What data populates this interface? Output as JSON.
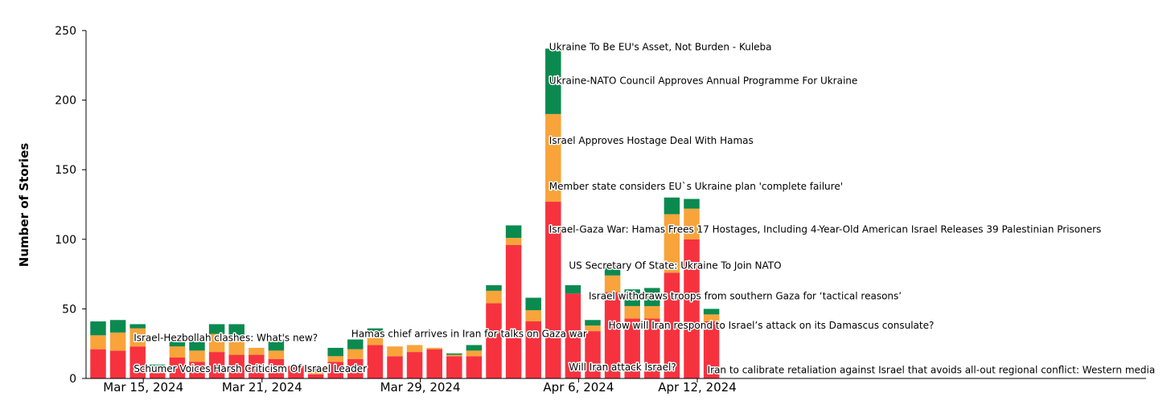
{
  "chart_data": {
    "type": "bar",
    "stacked": true,
    "title": "",
    "xlabel": "",
    "ylabel": "Number of Stories",
    "ylim": [
      0,
      250
    ],
    "yticks": [
      0,
      50,
      100,
      150,
      200,
      250
    ],
    "grid": false,
    "colors": {
      "red": "#f7323f",
      "orange": "#f8a43a",
      "green": "#0b8a50"
    },
    "xtick_labels": [
      {
        "index": 2,
        "label": "Mar 15, 2024"
      },
      {
        "index": 8,
        "label": "Mar 21, 2024"
      },
      {
        "index": 16,
        "label": "Mar 29, 2024"
      },
      {
        "index": 24,
        "label": "Apr 6, 2024"
      },
      {
        "index": 30,
        "label": "Apr 12, 2024"
      }
    ],
    "categories": [
      "Mar 13",
      "Mar 14",
      "Mar 15",
      "Mar 16",
      "Mar 17",
      "Mar 18",
      "Mar 19",
      "Mar 20",
      "Mar 21",
      "Mar 22",
      "Mar 23",
      "Mar 24",
      "Mar 25",
      "Mar 26",
      "Mar 27",
      "Mar 28",
      "Mar 29",
      "Mar 30",
      "Mar 31",
      "Apr 1",
      "Apr 2",
      "Apr 3",
      "Apr 4",
      "Apr 5",
      "Apr 6",
      "Apr 7",
      "Apr 8",
      "Apr 9",
      "Apr 10",
      "Apr 11",
      "Apr 12",
      "Apr 13",
      "Apr 14"
    ],
    "series": [
      {
        "name": "red",
        "color": "#f7323f",
        "values": [
          21,
          20,
          23,
          4,
          15,
          12,
          19,
          17,
          17,
          14,
          9,
          3,
          12,
          14,
          24,
          16,
          19,
          21,
          16,
          16,
          54,
          96,
          41,
          127,
          61,
          34,
          62,
          43,
          43,
          76,
          100,
          41,
          0
        ]
      },
      {
        "name": "orange",
        "color": "#f8a43a",
        "values": [
          10,
          13,
          13,
          3,
          8,
          8,
          13,
          14,
          5,
          6,
          0,
          2,
          4,
          7,
          7,
          7,
          5,
          1,
          1,
          4,
          9,
          5,
          8,
          63,
          0,
          4,
          12,
          9,
          9,
          42,
          22,
          5,
          0
        ]
      },
      {
        "name": "green",
        "color": "#0b8a50",
        "values": [
          10,
          9,
          3,
          3,
          6,
          11,
          7,
          8,
          0,
          8,
          0,
          3,
          6,
          7,
          5,
          0,
          0,
          0,
          1,
          4,
          4,
          9,
          9,
          47,
          6,
          4,
          9,
          12,
          13,
          12,
          7,
          4,
          0
        ]
      }
    ],
    "annotations": [
      {
        "index": 23,
        "y": 234,
        "text": "Ukraine To Be EU's Asset, Not Burden - Kuleba"
      },
      {
        "index": 23,
        "y": 210,
        "text": "Ukraine-NATO Council Approves Annual Programme For Ukraine"
      },
      {
        "index": 23,
        "y": 167,
        "text": "Israel Approves Hostage Deal With Hamas"
      },
      {
        "index": 23,
        "y": 134,
        "text": "Member state considers EU`s Ukraine plan 'complete failure'"
      },
      {
        "index": 23,
        "y": 103,
        "text": "Israel-Gaza War: Hamas Frees 17 Hostages, Including 4-Year-Old American Israel Releases 39 Palestinian Prisoners"
      },
      {
        "index": 24,
        "y": 77,
        "text": "US Secretary Of State: Ukraine To Join NATO"
      },
      {
        "index": 25,
        "y": 55,
        "text": "Israel withdraws troops from southern Gaza for ‘tactical reasons’"
      },
      {
        "index": 26,
        "y": 34,
        "text": "How will Iran respond to Israel’s attack on its Damascus consulate?"
      },
      {
        "index": 24,
        "y": 4,
        "text": "Will Iran attack Israel?"
      },
      {
        "index": 31,
        "y": 2,
        "text": "Iran to calibrate retaliation against Israel that avoids all-out regional conflict: Western media"
      },
      {
        "index": 13,
        "y": 28,
        "text": "Hamas chief arrives in Iran for talks on Gaza war"
      },
      {
        "index": 2,
        "y": 25,
        "text": "Israel-Hezbollah clashes: What's new?"
      },
      {
        "index": 2,
        "y": 3,
        "text": "Schumer Voices Harsh Criticism Of Israel Leader"
      }
    ]
  }
}
